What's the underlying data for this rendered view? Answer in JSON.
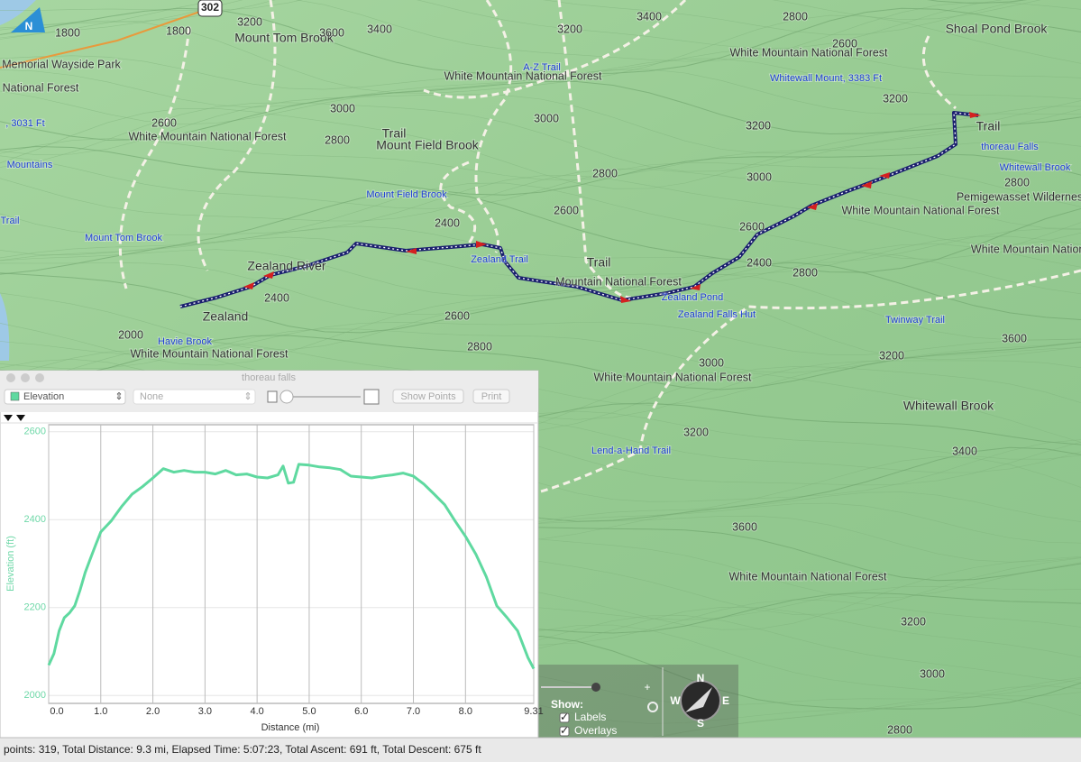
{
  "map": {
    "labels": [
      "1800",
      "1800",
      "302",
      "3200",
      "Mount Tom Brook",
      "3600",
      "3400",
      "3200",
      "3400",
      "2800",
      "Shoal Pond Brook",
      "Memorial Wayside Park",
      "White Mountain National Forest",
      "2600",
      "A-Z Trail",
      "White Mountain National Forest",
      "Whitewall Mount, 3383 Ft",
      ", 3031 Ft",
      "3200",
      "3000",
      "3000",
      "Trail",
      "2600",
      "White Mountain National Forest",
      "2800",
      "Trail",
      "Mount Field Brook",
      "3200",
      "thoreau Falls",
      "Mountains",
      "Whitewall Brook",
      "2800",
      "3000",
      "2800",
      "Pemigewasset Wildernes",
      "Mount Field Brook",
      "2600",
      "White Mountain National Forest",
      "Trail",
      "2400",
      "2600",
      "Mount Tom Brook",
      "White Mountain National",
      "Zealand River",
      "Zealand Trail",
      "Trail",
      "2400",
      "2800",
      "2400",
      "Mountain National Forest",
      "Zealand Pond",
      "Zealand",
      "2600",
      "Zealand Falls Hut",
      "Twinway Trail",
      "2000",
      "Havie Brook",
      "2800",
      "White Mountain National Forest",
      "3600",
      "3200",
      "3000",
      "White Mountain National Forest",
      "Whitewall Brook",
      "3200",
      "Lend-a-Hand Trail",
      "3400",
      "3600",
      "White Mountain National Forest",
      "3200",
      "3000",
      "2800",
      "National Forest"
    ],
    "compass": {
      "n": "N",
      "e": "E",
      "s": "S",
      "w": "W",
      "badge": "N"
    },
    "controls": {
      "show": "Show:",
      "labels": "Labels",
      "overlays": "Overlays"
    }
  },
  "panel": {
    "title": "thoreau falls",
    "data_menu": "Elevation",
    "second_menu": "None",
    "show_points": "Show Points",
    "print": "Print"
  },
  "chart_data": {
    "type": "line",
    "xlabel": "Distance (mi)",
    "ylabel": "Elevation (ft)",
    "x": [
      0,
      0.1,
      0.2,
      0.3,
      0.4,
      0.5,
      0.6,
      0.7,
      0.8,
      0.9,
      1.0,
      1.2,
      1.4,
      1.6,
      1.8,
      2.0,
      2.2,
      2.4,
      2.6,
      2.8,
      3.0,
      3.2,
      3.4,
      3.6,
      3.8,
      4.0,
      4.2,
      4.4,
      4.5,
      4.6,
      4.7,
      4.8,
      5.0,
      5.2,
      5.4,
      5.6,
      5.8,
      6.0,
      6.2,
      6.4,
      6.6,
      6.8,
      7.0,
      7.2,
      7.4,
      7.6,
      7.8,
      8.0,
      8.2,
      8.4,
      8.6,
      8.8,
      9.0,
      9.2,
      9.31
    ],
    "series": [
      {
        "name": "Elevation",
        "color": "#5fd9a0",
        "values": [
          2069,
          2095,
          2147,
          2177,
          2188,
          2204,
          2239,
          2280,
          2311,
          2342,
          2372,
          2397,
          2430,
          2458,
          2475,
          2495,
          2516,
          2508,
          2512,
          2508,
          2508,
          2504,
          2512,
          2502,
          2504,
          2497,
          2495,
          2502,
          2522,
          2483,
          2485,
          2526,
          2524,
          2520,
          2518,
          2514,
          2499,
          2497,
          2495,
          2499,
          2502,
          2506,
          2499,
          2481,
          2458,
          2434,
          2397,
          2362,
          2321,
          2270,
          2204,
          2177,
          2147,
          2086,
          2061
        ]
      }
    ],
    "xlim": [
      0,
      9.31
    ],
    "xticks": [
      {
        "value": 0,
        "label": "0.0"
      },
      {
        "value": 1,
        "label": "1.0"
      },
      {
        "value": 2,
        "label": "2.0"
      },
      {
        "value": 3,
        "label": "3.0"
      },
      {
        "value": 4,
        "label": "4.0"
      },
      {
        "value": 5,
        "label": "5.0"
      },
      {
        "value": 6,
        "label": "6.0"
      },
      {
        "value": 7,
        "label": "7.0"
      },
      {
        "value": 8,
        "label": "8.0"
      },
      9.31
    ],
    "ylim": [
      1982,
      2616
    ],
    "yticks": [
      2000,
      2200,
      2400,
      2600
    ],
    "grid": true
  },
  "status": "points: 319, Total Distance: 9.3 mi, Elapsed Time: 5:07:23, Total Ascent: 691 ft, Total Descent: 675 ft"
}
